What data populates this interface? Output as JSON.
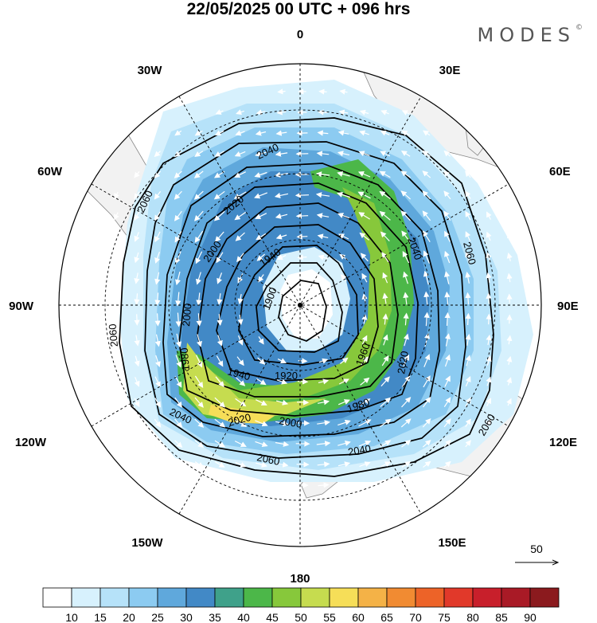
{
  "header": {
    "title": "22/05/2025  00 UTC  + 096 hrs",
    "brand": "MODES",
    "brand_mark": "©"
  },
  "map": {
    "projection": "south-polar-stereographic",
    "longitude_labels": {
      "top": "0",
      "top_right": "30E",
      "right_upper": "60E",
      "right": "90E",
      "right_lower": "120E",
      "bottom_right": "150E",
      "bottom": "180",
      "bottom_left": "150W",
      "left_lower": "120W",
      "left": "90W",
      "left_upper": "60W",
      "top_left": "30W"
    },
    "contour_labels": [
      {
        "text": "2040"
      },
      {
        "text": "2060"
      },
      {
        "text": "2020"
      },
      {
        "text": "2000"
      },
      {
        "text": "1940"
      },
      {
        "text": "1900"
      },
      {
        "text": "2040"
      },
      {
        "text": "2060"
      },
      {
        "text": "2060"
      },
      {
        "text": "2000"
      },
      {
        "text": "1980"
      },
      {
        "text": "1940"
      },
      {
        "text": "1920"
      },
      {
        "text": "1960"
      },
      {
        "text": "2020"
      },
      {
        "text": "1980"
      },
      {
        "text": "2000"
      },
      {
        "text": "2020"
      },
      {
        "text": "2040"
      },
      {
        "text": "2060"
      },
      {
        "text": "2060"
      },
      {
        "text": "2040"
      }
    ],
    "wind_reference": {
      "value": "50"
    }
  },
  "colorbar": {
    "colors": [
      "#ffffff",
      "#d7f1fd",
      "#b6e2f9",
      "#8ccbf1",
      "#5fa8dc",
      "#4289c6",
      "#3fa18a",
      "#4cb749",
      "#87c83b",
      "#c6dc4f",
      "#f6de58",
      "#f4b247",
      "#f18b32",
      "#ed6328",
      "#e1392a",
      "#c81f2b",
      "#a91a26",
      "#8b1a1e"
    ],
    "labels": [
      "10",
      "15",
      "20",
      "25",
      "30",
      "35",
      "40",
      "45",
      "50",
      "55",
      "60",
      "65",
      "70",
      "75",
      "80",
      "85",
      "90"
    ]
  }
}
